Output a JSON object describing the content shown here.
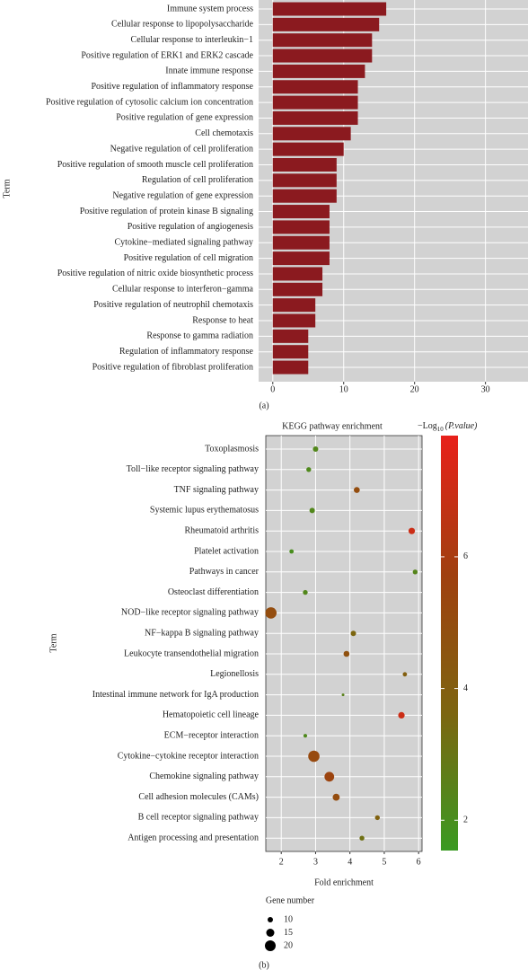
{
  "chart_data": [
    {
      "type": "barh",
      "ylabel": "Term",
      "caption": "(a)",
      "color": "#8b1a1f",
      "grid": true,
      "categories": [
        "Immune system process",
        "Cellular response to lipopolysaccharide",
        "Cellular response to interleukin−1",
        "Positive regulation of ERK1 and ERK2 cascade",
        "Innate immune response",
        "Positive regulation of inflammatory response",
        "Positive regulation of cytosolic calcium ion concentration",
        "Positive regulation of gene expression",
        "Cell chemotaxis",
        "Negative regulation of cell proliferation",
        "Positive regulation of smooth muscle cell proliferation",
        "Regulation of cell proliferation",
        "Negative regulation of gene expression",
        "Positive regulation of protein kinase B signaling",
        "Positive regulation of angiogenesis",
        "Cytokine−mediated signaling pathway",
        "Positive regulation of cell migration",
        "Positive regulation of nitric oxide biosynthetic process",
        "Cellular response to interferon−gamma",
        "Positive regulation of neutrophil chemotaxis",
        "Response to heat",
        "Response to gamma radiation",
        "Regulation of inflammatory response",
        "Positive regulation of fibroblast proliferation"
      ],
      "values": [
        16,
        15,
        14,
        14,
        13,
        12,
        12,
        12,
        11,
        10,
        9,
        9,
        9,
        8,
        8,
        8,
        8,
        7,
        7,
        6,
        6,
        5,
        5,
        5
      ],
      "xlim": [
        -2,
        36
      ],
      "xticks": [
        0,
        10,
        20,
        30
      ]
    },
    {
      "type": "bubble",
      "title": "KEGG pathway enrichment",
      "xlabel": "Fold enrichment",
      "ylabel": "Term",
      "caption": "(b)",
      "grid": true,
      "categories": [
        "Toxoplasmosis",
        "Toll−like receptor signaling pathway",
        "TNF signaling pathway",
        "Systemic lupus erythematosus",
        "Rheumatoid arthritis",
        "Platelet activation",
        "Pathways in cancer",
        "Osteoclast differentiation",
        "NOD−like receptor signaling pathway",
        "NF−kappa B signaling pathway",
        "Leukocyte transendothelial migration",
        "Legionellosis",
        "Intestinal immune network for IgA production",
        "Hematopoietic cell lineage",
        "ECM−receptor interaction",
        "Cytokine−cytokine receptor interaction",
        "Chemokine signaling pathway",
        "Cell adhesion molecules (CAMs)",
        "B cell receptor signaling pathway",
        "Antigen processing and presentation"
      ],
      "values": [
        3.0,
        2.8,
        4.2,
        2.9,
        5.8,
        2.3,
        5.9,
        2.7,
        1.7,
        4.1,
        3.9,
        5.6,
        3.8,
        5.5,
        2.7,
        2.95,
        3.4,
        3.6,
        4.8,
        4.35
      ],
      "sizes": [
        10,
        9,
        11,
        10,
        12,
        8,
        9,
        9,
        21,
        10,
        11,
        8,
        5,
        12,
        7,
        21,
        18,
        13,
        9,
        9
      ],
      "color_values": [
        2.3,
        2.2,
        5.0,
        2.3,
        7.0,
        2.0,
        2.4,
        2.3,
        5.0,
        3.6,
        4.8,
        4.0,
        2.5,
        7.0,
        2.2,
        5.2,
        5.5,
        5.0,
        3.8,
        3.2
      ],
      "xlim": [
        1.55,
        6.1
      ],
      "xticks": [
        2,
        3,
        4,
        5,
        6
      ],
      "colorscale": [
        "#3a9a22",
        "#7d6510",
        "#a0400f",
        "#e8201a"
      ],
      "clim": [
        1.54,
        7.84
      ],
      "cticks": [
        2,
        4,
        6
      ],
      "colorbar_title": {
        "prefix": "−Log",
        "sub": "10",
        "text": "(P.value)"
      },
      "size_legend": {
        "title": "Gene number",
        "values": [
          10,
          15,
          20
        ]
      }
    }
  ]
}
